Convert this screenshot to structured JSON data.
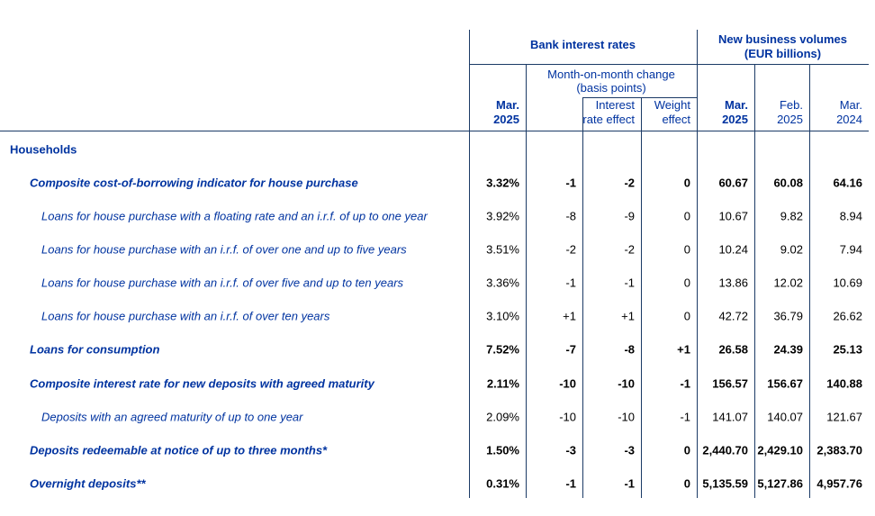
{
  "header": {
    "bank_interest_rates": "Bank interest rates",
    "new_business_volumes_line1": "New business volumes",
    "new_business_volumes_line2": "(EUR billions)",
    "mom_change_line1": "Month-on-month change",
    "mom_change_line2": "(basis points)",
    "columns": {
      "rate_mar_2025": {
        "l1": "Mar.",
        "l2": "2025"
      },
      "interest_rate_effect": {
        "l1": "Interest",
        "l2": "rate effect"
      },
      "weight_effect": {
        "l1": "Weight",
        "l2": "effect"
      },
      "nbv_mar_2025": {
        "l1": "Mar.",
        "l2": "2025"
      },
      "nbv_feb_2025": {
        "l1": "Feb.",
        "l2": "2025"
      },
      "nbv_mar_2024": {
        "l1": "Mar.",
        "l2": "2024"
      }
    }
  },
  "table": {
    "rows": [
      {
        "type": "section",
        "emphasis": "section",
        "indent": 0,
        "label": "Households",
        "values": null
      },
      {
        "type": "data",
        "emphasis": "bold",
        "indent": 1,
        "label": "Composite cost-of-borrowing indicator for house purchase",
        "values": [
          "3.32%",
          "-1",
          "-2",
          "0",
          "60.67",
          "60.08",
          "64.16"
        ]
      },
      {
        "type": "data",
        "emphasis": "normal",
        "indent": 2,
        "label": "Loans for house purchase with a floating rate and an i.r.f. of up to one year",
        "values": [
          "3.92%",
          "-8",
          "-9",
          "0",
          "10.67",
          "9.82",
          "8.94"
        ]
      },
      {
        "type": "data",
        "emphasis": "normal",
        "indent": 2,
        "label": "Loans for house purchase with an i.r.f. of over one and up to five years",
        "values": [
          "3.51%",
          "-2",
          "-2",
          "0",
          "10.24",
          "9.02",
          "7.94"
        ]
      },
      {
        "type": "data",
        "emphasis": "normal",
        "indent": 2,
        "label": "Loans for house purchase with an i.r.f. of over five and up to ten years",
        "values": [
          "3.36%",
          "-1",
          "-1",
          "0",
          "13.86",
          "12.02",
          "10.69"
        ]
      },
      {
        "type": "data",
        "emphasis": "normal",
        "indent": 2,
        "label": "Loans for house purchase with an i.r.f. of over ten years",
        "values": [
          "3.10%",
          "+1",
          "+1",
          "0",
          "42.72",
          "36.79",
          "26.62"
        ]
      },
      {
        "type": "data",
        "emphasis": "bold",
        "indent": 1,
        "label": "Loans for consumption",
        "values": [
          "7.52%",
          "-7",
          "-8",
          "+1",
          "26.58",
          "24.39",
          "25.13"
        ]
      },
      {
        "type": "data",
        "emphasis": "bold",
        "indent": 1,
        "label": "Composite interest rate for new deposits with agreed maturity",
        "values": [
          "2.11%",
          "-10",
          "-10",
          "-1",
          "156.57",
          "156.67",
          "140.88"
        ]
      },
      {
        "type": "data",
        "emphasis": "normal",
        "indent": 2,
        "label": "Deposits with an agreed maturity of up to one year",
        "values": [
          "2.09%",
          "-10",
          "-10",
          "-1",
          "141.07",
          "140.07",
          "121.67"
        ]
      },
      {
        "type": "data",
        "emphasis": "bold",
        "indent": 1,
        "label": "Deposits redeemable at notice of up to three months*",
        "values": [
          "1.50%",
          "-3",
          "-3",
          "0",
          "2,440.70",
          "2,429.10",
          "2,383.70"
        ]
      },
      {
        "type": "data",
        "emphasis": "bold",
        "indent": 1,
        "label": "Overnight deposits**",
        "values": [
          "0.31%",
          "-1",
          "-1",
          "0",
          "5,135.59",
          "5,127.86",
          "4,957.76"
        ]
      }
    ]
  },
  "colors": {
    "text_blue": "#0033a0",
    "border_blue": "#1b3a66",
    "number_black": "#000000"
  }
}
